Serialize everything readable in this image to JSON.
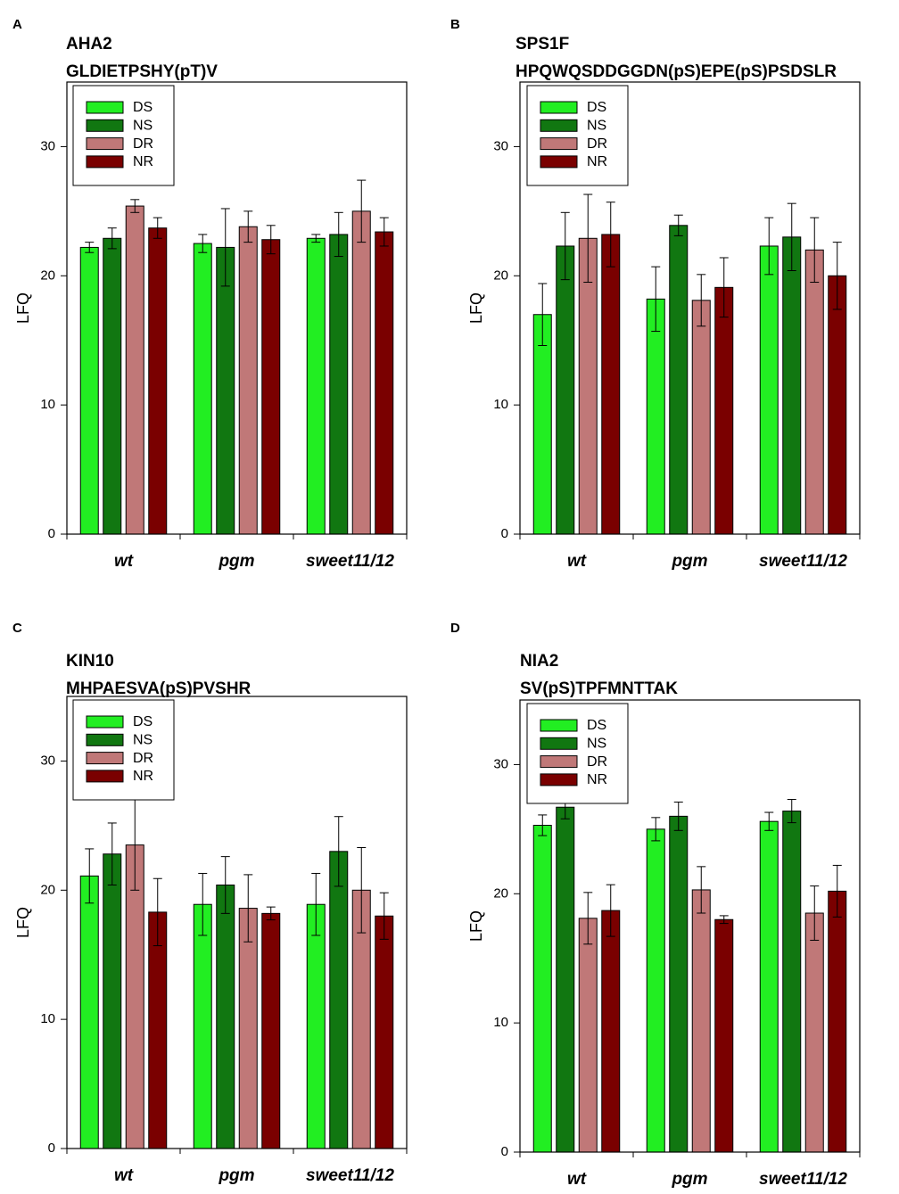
{
  "figure": {
    "legend_entries": [
      "DS",
      "NS",
      "DR",
      "NR"
    ],
    "series_colors": [
      "#22ee22",
      "#117711",
      "#c07878",
      "#7a0000"
    ]
  },
  "chart_data": [
    {
      "type": "bar",
      "panel_label": "A",
      "title": "AHA2",
      "subtitle": "GLDIETPSHY(pT)V",
      "xlabel": "",
      "ylabel": "LFQ",
      "ylim": [
        0,
        35
      ],
      "yticks": [
        0,
        10,
        20,
        30
      ],
      "legend_position": "top-left",
      "categories": [
        "wt",
        "pgm",
        "sweet11/12"
      ],
      "series": [
        {
          "name": "DS",
          "color": "#22ee22",
          "values": [
            22.2,
            22.5,
            22.9
          ],
          "errors": [
            0.4,
            0.7,
            0.3
          ]
        },
        {
          "name": "NS",
          "color": "#117711",
          "values": [
            22.9,
            22.2,
            23.2
          ],
          "errors": [
            0.8,
            3.0,
            1.7
          ]
        },
        {
          "name": "DR",
          "color": "#c07878",
          "values": [
            25.4,
            23.8,
            25.0
          ],
          "errors": [
            0.5,
            1.2,
            2.4
          ]
        },
        {
          "name": "NR",
          "color": "#7a0000",
          "values": [
            23.7,
            22.8,
            23.4
          ],
          "errors": [
            0.8,
            1.1,
            1.1
          ]
        }
      ]
    },
    {
      "type": "bar",
      "panel_label": "B",
      "title": "SPS1F",
      "subtitle": "HPQWQSDDGGDN(pS)EPE(pS)PSDSLR",
      "xlabel": "",
      "ylabel": "LFQ",
      "ylim": [
        0,
        35
      ],
      "yticks": [
        0,
        10,
        20,
        30
      ],
      "legend_position": "top-left",
      "categories": [
        "wt",
        "pgm",
        "sweet11/12"
      ],
      "series": [
        {
          "name": "DS",
          "color": "#22ee22",
          "values": [
            17.0,
            18.2,
            22.3
          ],
          "errors": [
            2.4,
            2.5,
            2.2
          ]
        },
        {
          "name": "NS",
          "color": "#117711",
          "values": [
            22.3,
            23.9,
            23.0
          ],
          "errors": [
            2.6,
            0.8,
            2.6
          ]
        },
        {
          "name": "DR",
          "color": "#c07878",
          "values": [
            22.9,
            18.1,
            22.0
          ],
          "errors": [
            3.4,
            2.0,
            2.5
          ]
        },
        {
          "name": "NR",
          "color": "#7a0000",
          "values": [
            23.2,
            19.1,
            20.0
          ],
          "errors": [
            2.5,
            2.3,
            2.6
          ]
        }
      ]
    },
    {
      "type": "bar",
      "panel_label": "C",
      "title": "KIN10",
      "subtitle": "MHPAESVA(pS)PVSHR",
      "xlabel": "",
      "ylabel": "LFQ",
      "ylim": [
        0,
        35
      ],
      "yticks": [
        0,
        10,
        20,
        30
      ],
      "legend_position": "top-left",
      "categories": [
        "wt",
        "pgm",
        "sweet11/12"
      ],
      "series": [
        {
          "name": "DS",
          "color": "#22ee22",
          "values": [
            21.1,
            18.9,
            18.9
          ],
          "errors": [
            2.1,
            2.4,
            2.4
          ]
        },
        {
          "name": "NS",
          "color": "#117711",
          "values": [
            22.8,
            20.4,
            23.0
          ],
          "errors": [
            2.4,
            2.2,
            2.7
          ]
        },
        {
          "name": "DR",
          "color": "#c07878",
          "values": [
            23.5,
            18.6,
            20.0
          ],
          "errors": [
            3.5,
            2.6,
            3.3
          ]
        },
        {
          "name": "NR",
          "color": "#7a0000",
          "values": [
            18.3,
            18.2,
            18.0
          ],
          "errors": [
            2.6,
            0.5,
            1.8
          ]
        }
      ]
    },
    {
      "type": "bar",
      "panel_label": "D",
      "title": "NIA2",
      "subtitle": "SV(pS)TPFMNTTAK",
      "xlabel": "",
      "ylabel": "LFQ",
      "ylim": [
        0,
        35
      ],
      "yticks": [
        0,
        10,
        20,
        30
      ],
      "legend_position": "top-left",
      "categories": [
        "wt",
        "pgm",
        "sweet11/12"
      ],
      "series": [
        {
          "name": "DS",
          "color": "#22ee22",
          "values": [
            25.3,
            25.0,
            25.6
          ],
          "errors": [
            0.8,
            0.9,
            0.7
          ]
        },
        {
          "name": "NS",
          "color": "#117711",
          "values": [
            26.7,
            26.0,
            26.4
          ],
          "errors": [
            0.9,
            1.1,
            0.9
          ]
        },
        {
          "name": "DR",
          "color": "#c07878",
          "values": [
            18.1,
            20.3,
            18.5
          ],
          "errors": [
            2.0,
            1.8,
            2.1
          ]
        },
        {
          "name": "NR",
          "color": "#7a0000",
          "values": [
            18.7,
            18.0,
            20.2
          ],
          "errors": [
            2.0,
            0.3,
            2.0
          ]
        }
      ]
    }
  ]
}
